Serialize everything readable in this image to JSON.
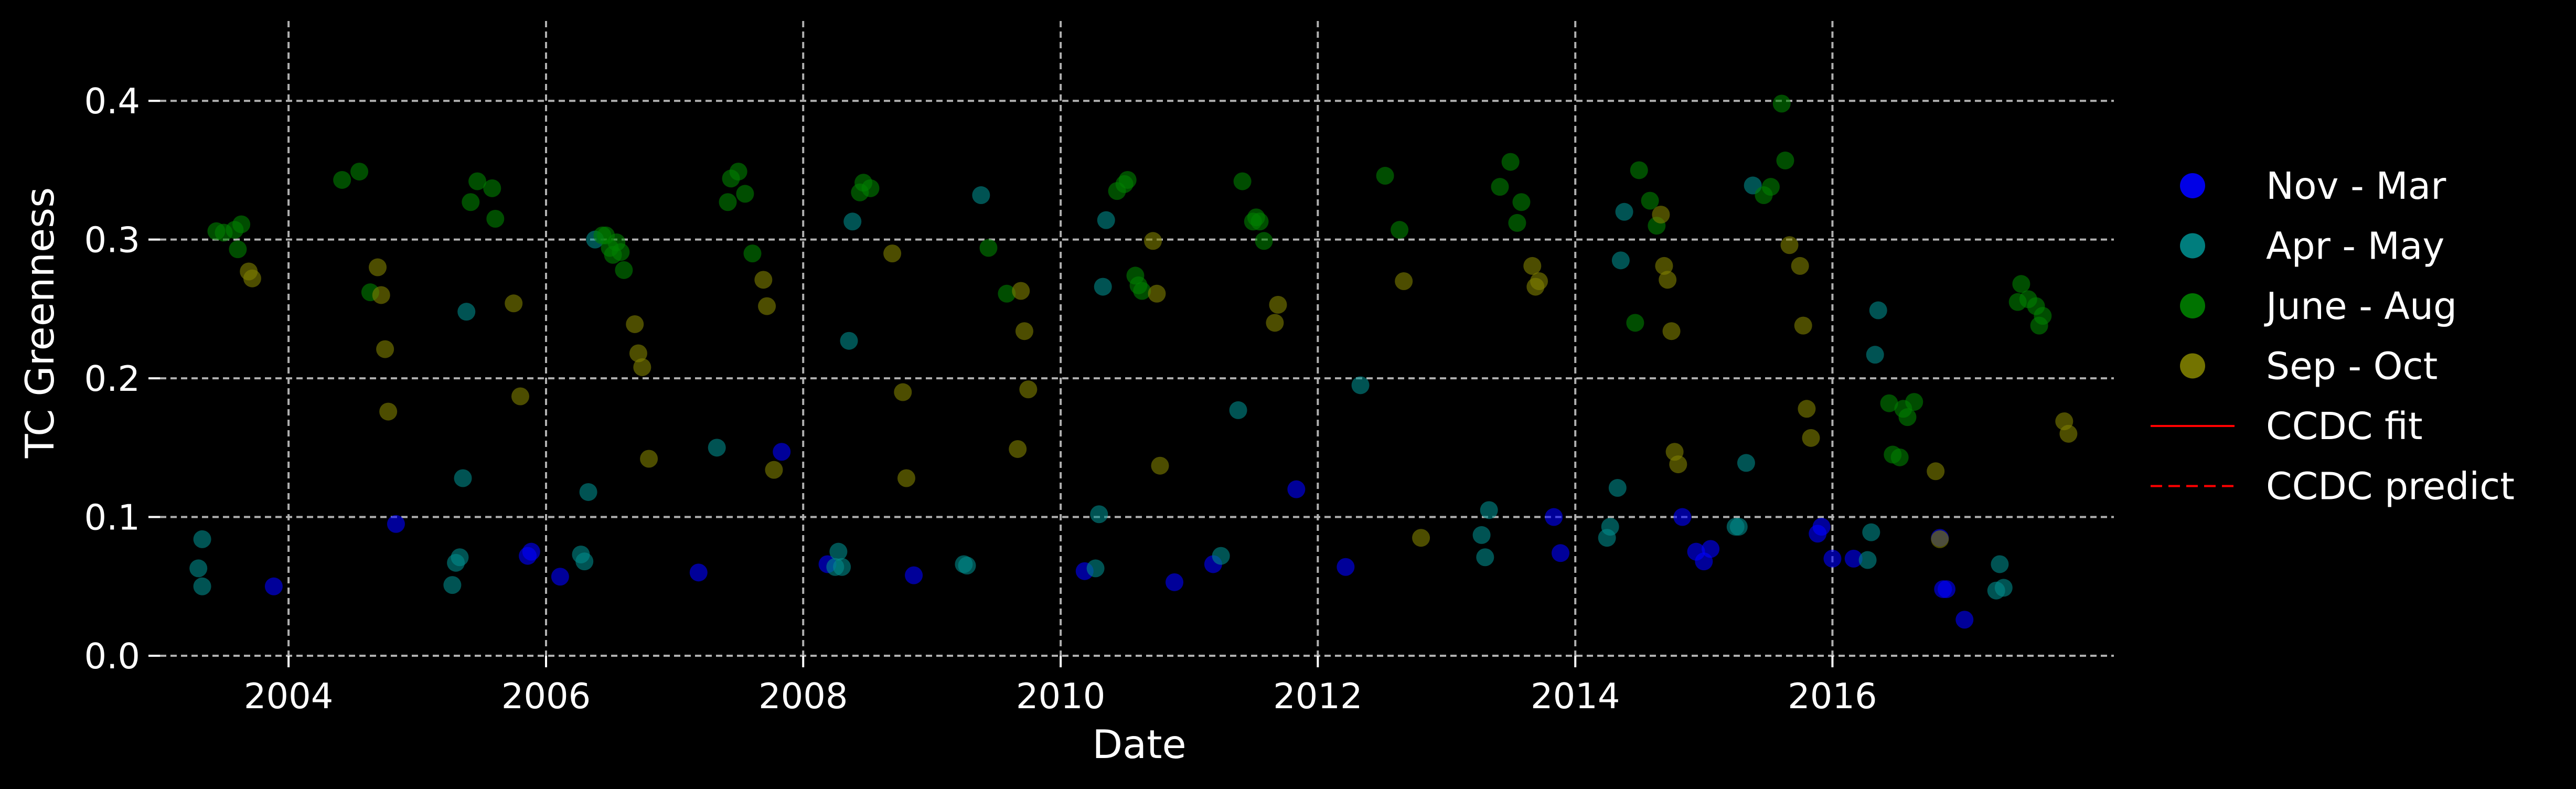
{
  "chart_data": {
    "type": "scatter",
    "title": "",
    "xlabel": "Date",
    "ylabel": "TC Greenness",
    "xlim": [
      "2003-01-01",
      "2018-03-10"
    ],
    "ylim": [
      0.0,
      0.45
    ],
    "x_ticks": [
      "2004",
      "2006",
      "2008",
      "2010",
      "2012",
      "2014",
      "2016"
    ],
    "y_ticks": [
      "0.0",
      "0.1",
      "0.2",
      "0.3",
      "0.4"
    ],
    "grid": true,
    "legend_position": "right",
    "series": [
      {
        "name": "Nov - Mar",
        "kind": "points",
        "color": "#0000ff",
        "points": [
          [
            "2003-11-20",
            0.05
          ],
          [
            "2004-11-01",
            0.095
          ],
          [
            "2005-11-10",
            0.072
          ],
          [
            "2005-11-20",
            0.075
          ],
          [
            "2006-02-10",
            0.057
          ],
          [
            "2007-03-10",
            0.06
          ],
          [
            "2007-11-01",
            0.147
          ],
          [
            "2008-03-10",
            0.066
          ],
          [
            "2008-11-10",
            0.058
          ],
          [
            "2010-03-10",
            0.061
          ],
          [
            "2010-11-20",
            0.053
          ],
          [
            "2011-03-10",
            0.066
          ],
          [
            "2011-11-01",
            0.12
          ],
          [
            "2012-03-20",
            0.064
          ],
          [
            "2013-11-01",
            0.1
          ],
          [
            "2013-11-20",
            0.074
          ],
          [
            "2014-11-01",
            0.1
          ],
          [
            "2014-12-10",
            0.075
          ],
          [
            "2015-01-01",
            0.068
          ],
          [
            "2015-01-20",
            0.077
          ],
          [
            "2015-11-20",
            0.088
          ],
          [
            "2015-12-01",
            0.093
          ],
          [
            "2016-01-01",
            0.07
          ],
          [
            "2016-03-01",
            0.07
          ],
          [
            "2016-11-01",
            0.085
          ],
          [
            "2016-11-10",
            0.048
          ],
          [
            "2016-11-20",
            0.048
          ],
          [
            "2017-01-10",
            0.026
          ]
        ]
      },
      {
        "name": "Apr - May",
        "kind": "points",
        "color": "#008b8b",
        "points": [
          [
            "2003-04-20",
            0.063
          ],
          [
            "2003-05-01",
            0.084
          ],
          [
            "2003-05-01",
            0.05
          ],
          [
            "2005-04-10",
            0.051
          ],
          [
            "2005-04-20",
            0.067
          ],
          [
            "2005-05-01",
            0.071
          ],
          [
            "2005-05-10",
            0.128
          ],
          [
            "2005-05-20",
            0.248
          ],
          [
            "2006-04-10",
            0.073
          ],
          [
            "2006-04-20",
            0.068
          ],
          [
            "2006-05-01",
            0.118
          ],
          [
            "2006-05-20",
            0.3
          ],
          [
            "2007-05-01",
            0.15
          ],
          [
            "2008-04-01",
            0.064
          ],
          [
            "2008-04-10",
            0.075
          ],
          [
            "2008-04-20",
            0.064
          ],
          [
            "2008-05-10",
            0.227
          ],
          [
            "2008-05-20",
            0.313
          ],
          [
            "2009-04-01",
            0.066
          ],
          [
            "2009-04-10",
            0.065
          ],
          [
            "2009-05-20",
            0.332
          ],
          [
            "2010-04-10",
            0.063
          ],
          [
            "2010-04-20",
            0.102
          ],
          [
            "2010-05-01",
            0.266
          ],
          [
            "2010-05-10",
            0.314
          ],
          [
            "2011-04-01",
            0.072
          ],
          [
            "2011-05-20",
            0.177
          ],
          [
            "2012-05-01",
            0.195
          ],
          [
            "2013-04-10",
            0.087
          ],
          [
            "2013-04-20",
            0.071
          ],
          [
            "2013-05-01",
            0.105
          ],
          [
            "2014-04-01",
            0.085
          ],
          [
            "2014-04-10",
            0.093
          ],
          [
            "2014-05-01",
            0.121
          ],
          [
            "2014-05-10",
            0.285
          ],
          [
            "2014-05-20",
            0.32
          ],
          [
            "2015-04-01",
            0.093
          ],
          [
            "2015-04-10",
            0.093
          ],
          [
            "2015-05-01",
            0.139
          ],
          [
            "2015-05-20",
            0.339
          ],
          [
            "2016-04-10",
            0.069
          ],
          [
            "2016-04-20",
            0.089
          ],
          [
            "2016-05-01",
            0.217
          ],
          [
            "2016-05-10",
            0.249
          ],
          [
            "2017-04-10",
            0.047
          ],
          [
            "2017-04-20",
            0.066
          ],
          [
            "2017-05-01",
            0.049
          ]
        ]
      },
      {
        "name": "June - Aug",
        "kind": "points",
        "color": "#008000",
        "points": [
          [
            "2003-06-10",
            0.306
          ],
          [
            "2003-07-01",
            0.305
          ],
          [
            "2003-08-01",
            0.307
          ],
          [
            "2003-08-20",
            0.311
          ],
          [
            "2003-08-10",
            0.293
          ],
          [
            "2004-06-01",
            0.343
          ],
          [
            "2004-07-20",
            0.349
          ],
          [
            "2004-08-20",
            0.262
          ],
          [
            "2005-06-01",
            0.327
          ],
          [
            "2005-06-20",
            0.342
          ],
          [
            "2005-08-01",
            0.337
          ],
          [
            "2005-08-10",
            0.315
          ],
          [
            "2006-06-10",
            0.303
          ],
          [
            "2006-06-20",
            0.303
          ],
          [
            "2006-07-01",
            0.294
          ],
          [
            "2006-07-20",
            0.298
          ],
          [
            "2006-08-01",
            0.291
          ],
          [
            "2006-07-10",
            0.289
          ],
          [
            "2006-08-10",
            0.278
          ],
          [
            "2007-06-01",
            0.327
          ],
          [
            "2007-06-10",
            0.344
          ],
          [
            "2007-07-01",
            0.349
          ],
          [
            "2007-07-20",
            0.333
          ],
          [
            "2007-08-10",
            0.29
          ],
          [
            "2008-06-10",
            0.334
          ],
          [
            "2008-06-20",
            0.341
          ],
          [
            "2008-07-10",
            0.337
          ],
          [
            "2009-06-10",
            0.294
          ],
          [
            "2009-08-01",
            0.261
          ],
          [
            "2010-06-10",
            0.335
          ],
          [
            "2010-07-01",
            0.34
          ],
          [
            "2010-07-10",
            0.343
          ],
          [
            "2010-08-01",
            0.274
          ],
          [
            "2010-08-10",
            0.267
          ],
          [
            "2010-08-20",
            0.263
          ],
          [
            "2011-06-01",
            0.342
          ],
          [
            "2011-07-01",
            0.313
          ],
          [
            "2011-07-10",
            0.316
          ],
          [
            "2011-07-20",
            0.313
          ],
          [
            "2011-08-01",
            0.299
          ],
          [
            "2012-07-10",
            0.346
          ],
          [
            "2012-08-20",
            0.307
          ],
          [
            "2013-06-01",
            0.338
          ],
          [
            "2013-07-01",
            0.356
          ],
          [
            "2013-08-01",
            0.327
          ],
          [
            "2013-07-20",
            0.312
          ],
          [
            "2014-06-20",
            0.24
          ],
          [
            "2014-07-01",
            0.35
          ],
          [
            "2014-08-01",
            0.328
          ],
          [
            "2014-08-20",
            0.31
          ],
          [
            "2015-06-20",
            0.332
          ],
          [
            "2015-07-10",
            0.338
          ],
          [
            "2015-08-10",
            0.398
          ],
          [
            "2015-08-20",
            0.357
          ],
          [
            "2016-06-10",
            0.182
          ],
          [
            "2016-06-20",
            0.145
          ],
          [
            "2016-07-10",
            0.143
          ],
          [
            "2016-07-20",
            0.178
          ],
          [
            "2016-08-01",
            0.172
          ],
          [
            "2016-08-20",
            0.183
          ],
          [
            "2017-06-10",
            0.255
          ],
          [
            "2017-06-20",
            0.268
          ],
          [
            "2017-07-10",
            0.257
          ],
          [
            "2017-08-01",
            0.252
          ],
          [
            "2017-08-20",
            0.245
          ],
          [
            "2017-08-10",
            0.238
          ]
        ]
      },
      {
        "name": "Sep - Oct",
        "kind": "points",
        "color": "#808000",
        "points": [
          [
            "2003-09-10",
            0.277
          ],
          [
            "2003-09-20",
            0.272
          ],
          [
            "2004-09-10",
            0.28
          ],
          [
            "2004-09-20",
            0.26
          ],
          [
            "2004-10-01",
            0.221
          ],
          [
            "2004-10-10",
            0.176
          ],
          [
            "2005-10-01",
            0.254
          ],
          [
            "2005-10-20",
            0.187
          ],
          [
            "2006-09-10",
            0.239
          ],
          [
            "2006-09-20",
            0.218
          ],
          [
            "2006-10-01",
            0.208
          ],
          [
            "2006-10-20",
            0.142
          ],
          [
            "2007-09-10",
            0.271
          ],
          [
            "2007-09-20",
            0.252
          ],
          [
            "2007-10-10",
            0.134
          ],
          [
            "2008-09-10",
            0.29
          ],
          [
            "2008-10-10",
            0.19
          ],
          [
            "2008-10-20",
            0.128
          ],
          [
            "2009-09-01",
            0.149
          ],
          [
            "2009-09-10",
            0.263
          ],
          [
            "2009-09-20",
            0.234
          ],
          [
            "2009-10-01",
            0.192
          ],
          [
            "2010-09-20",
            0.299
          ],
          [
            "2010-10-01",
            0.261
          ],
          [
            "2010-10-10",
            0.137
          ],
          [
            "2011-09-01",
            0.24
          ],
          [
            "2011-09-10",
            0.253
          ],
          [
            "2012-09-01",
            0.27
          ],
          [
            "2012-10-20",
            0.085
          ],
          [
            "2013-09-01",
            0.281
          ],
          [
            "2013-09-10",
            0.266
          ],
          [
            "2013-09-20",
            0.27
          ],
          [
            "2014-09-01",
            0.318
          ],
          [
            "2014-09-10",
            0.281
          ],
          [
            "2014-09-20",
            0.271
          ],
          [
            "2014-10-01",
            0.234
          ],
          [
            "2014-10-10",
            0.147
          ],
          [
            "2014-10-20",
            0.138
          ],
          [
            "2015-09-01",
            0.296
          ],
          [
            "2015-10-01",
            0.281
          ],
          [
            "2015-10-10",
            0.238
          ],
          [
            "2015-10-20",
            0.178
          ],
          [
            "2015-11-01",
            0.157
          ],
          [
            "2016-10-20",
            0.133
          ],
          [
            "2016-11-01",
            0.084
          ],
          [
            "2017-10-20",
            0.169
          ],
          [
            "2017-11-01",
            0.16
          ]
        ]
      },
      {
        "name": "CCDC fit",
        "kind": "line",
        "color": "#ff0000",
        "line_style": "solid",
        "points": []
      },
      {
        "name": "CCDC predict",
        "kind": "line",
        "color": "#ff0000",
        "line_style": "dashed",
        "points": []
      }
    ]
  }
}
